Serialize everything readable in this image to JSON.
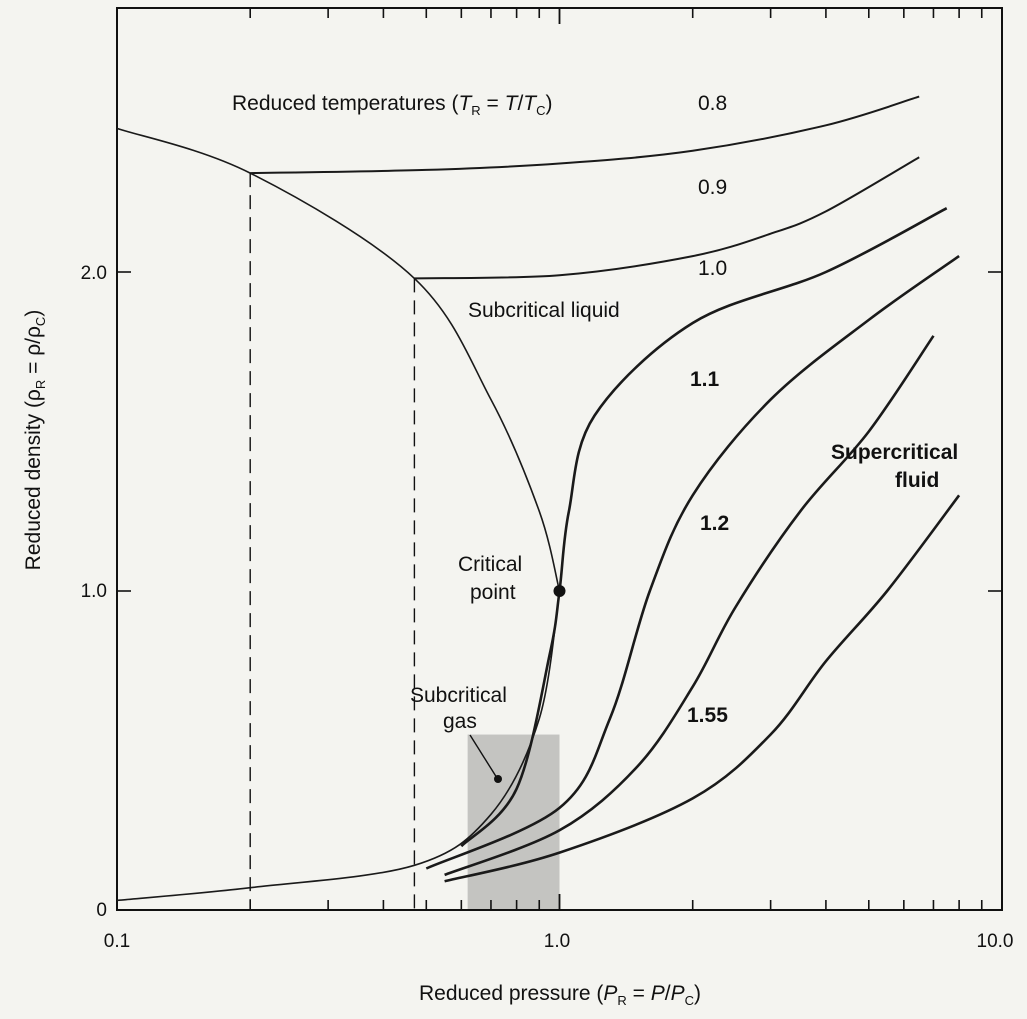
{
  "chart_data": {
    "type": "line",
    "xlabel": "Reduced pressure (P_R = P/P_C)",
    "ylabel": "Reduced density (ρ_R = ρ/ρ_C)",
    "x_scale": "log",
    "xlim": [
      0.1,
      10.0
    ],
    "ylim": [
      0,
      2.5
    ],
    "x_ticks": [
      "0.1",
      "1.0",
      "10.0"
    ],
    "y_ticks": [
      "0",
      "1.0",
      "2.0"
    ],
    "legend_title": "Reduced temperatures (T_R = T/T_C)",
    "series": [
      {
        "name": "0.8",
        "x": [
          0.2,
          0.5,
          1.0,
          2.0,
          4.0,
          6.5
        ],
        "y": [
          2.31,
          2.32,
          2.34,
          2.38,
          2.46,
          2.55
        ]
      },
      {
        "name": "0.9",
        "x": [
          0.47,
          1.0,
          2.0,
          3.0,
          4.0,
          6.5
        ],
        "y": [
          1.98,
          1.99,
          2.05,
          2.12,
          2.19,
          2.36
        ]
      },
      {
        "name": "1.0",
        "x": [
          0.6,
          0.8,
          0.95,
          1.0,
          1.05,
          1.2,
          2.0,
          4.0,
          7.5
        ],
        "y": [
          0.2,
          0.38,
          0.8,
          1.0,
          1.25,
          1.55,
          1.84,
          2.0,
          2.2
        ]
      },
      {
        "name": "1.1",
        "x": [
          0.5,
          1.0,
          1.3,
          1.6,
          2.0,
          3.0,
          5.0,
          8.0
        ],
        "y": [
          0.13,
          0.32,
          0.6,
          1.0,
          1.3,
          1.6,
          1.85,
          2.05
        ]
      },
      {
        "name": "1.2",
        "x": [
          0.55,
          1.0,
          1.5,
          2.0,
          2.5,
          3.5,
          5.0,
          7.0
        ],
        "y": [
          0.11,
          0.25,
          0.45,
          0.7,
          0.95,
          1.25,
          1.5,
          1.8
        ]
      },
      {
        "name": "1.55",
        "x": [
          0.55,
          1.0,
          2.0,
          3.0,
          4.0,
          5.5,
          8.0
        ],
        "y": [
          0.09,
          0.18,
          0.35,
          0.55,
          0.78,
          1.0,
          1.3
        ]
      }
    ],
    "coexistence_curve": {
      "x": [
        0.1,
        0.2,
        0.47,
        0.7,
        0.9,
        1.0
      ],
      "y": [
        2.45,
        2.31,
        1.98,
        1.6,
        1.25,
        1.0
      ]
    },
    "vapor_curve": {
      "x": [
        0.1,
        0.2,
        0.47,
        0.7,
        0.9,
        1.0
      ],
      "y": [
        0.03,
        0.07,
        0.14,
        0.3,
        0.6,
        1.0
      ]
    },
    "dashed_verticals": [
      0.2,
      0.47
    ],
    "critical_point": {
      "x": 1.0,
      "y": 1.0
    },
    "annotations": [
      "Subcritical liquid",
      "Critical point",
      "Subcritical gas",
      "Supercritical fluid"
    ]
  },
  "labels": {
    "legend_prefix": "Reduced temperatures (",
    "legend_T": "T",
    "legend_R": "R",
    "legend_eq": " = ",
    "legend_T2": "T",
    "legend_slash": "/",
    "legend_Tc": "T",
    "legend_C": "C",
    "legend_close": ")",
    "t08": "0.8",
    "t09": "0.9",
    "t10": "1.0",
    "t11": "1.1",
    "t12": "1.2",
    "t155": "1.55",
    "subcritical_liquid": "Subcritical liquid",
    "critical_1": "Critical",
    "critical_2": "point",
    "subgas_1": "Subcritical",
    "subgas_2": "gas",
    "supercrit_1": "Supercritical",
    "supercrit_2": "fluid",
    "x_tick_0": "0.1",
    "x_tick_1": "1.0",
    "x_tick_2": "10.0",
    "y_tick_0": "0",
    "y_tick_1": "1.0",
    "y_tick_2": "2.0",
    "xlabel_pre": "Reduced pressure (",
    "xlabel_P": "P",
    "xlabel_R": "R",
    "xlabel_eq": " = ",
    "xlabel_P2": "P",
    "xlabel_slash": "/",
    "xlabel_P3": "P",
    "xlabel_C": "C",
    "xlabel_close": ")",
    "ylabel_pre": "Reduced density (",
    "ylabel_rho": "ρ",
    "ylabel_R": "R",
    "ylabel_eq": " = ",
    "ylabel_rho2": "ρ/ρ",
    "ylabel_C": "C",
    "ylabel_close": ")"
  },
  "colors": {
    "curve": "#1a1a1a",
    "shade_dark": "#6b6b6b",
    "shade_mid": "#9a9a9a",
    "paper": "#f4f4f0"
  }
}
